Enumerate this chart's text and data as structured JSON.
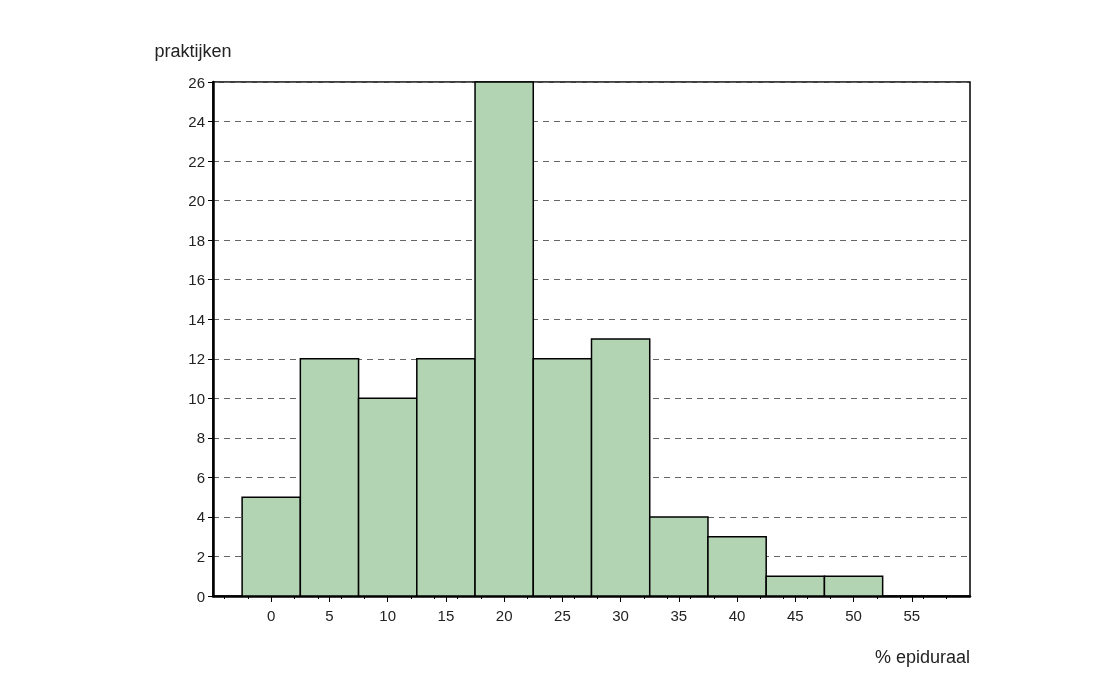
{
  "chart_data": {
    "type": "histogram",
    "ylabel": "praktijken",
    "xlabel": "% epiduraal",
    "bins": [
      -2.5,
      2.5,
      7.5,
      12.5,
      17.5,
      22.5,
      27.5,
      32.5,
      37.5,
      42.5,
      47.5,
      52.5
    ],
    "values": [
      5,
      12,
      10,
      12,
      26,
      12,
      13,
      4,
      3,
      1,
      1
    ],
    "color": "#b3d4b3",
    "xlim": [
      -5,
      60
    ],
    "xticks": [
      0,
      5,
      10,
      15,
      20,
      25,
      30,
      35,
      40,
      45,
      50,
      55
    ],
    "ylim": [
      0,
      26
    ],
    "yticks": [
      0,
      2,
      4,
      6,
      8,
      10,
      12,
      14,
      16,
      18,
      20,
      22,
      24,
      26
    ],
    "grid": "y"
  }
}
